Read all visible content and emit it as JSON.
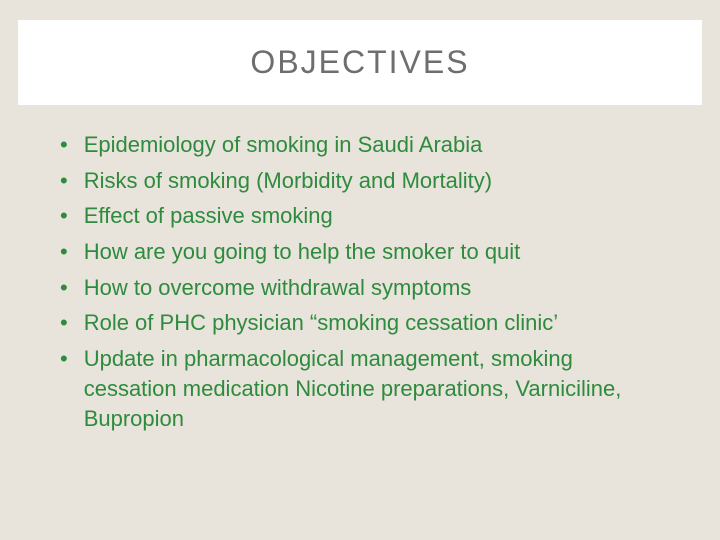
{
  "slide": {
    "title": "OBJECTIVES",
    "title_color": "#6e6e6e",
    "title_fontsize": 32,
    "title_letterspacing": 2,
    "title_bg": "#ffffff",
    "background_color": "#e8e3db",
    "bullet_color": "#2e8b3d",
    "bullet_fontsize": 22,
    "bullets": [
      "Epidemiology of smoking in Saudi Arabia",
      "Risks of smoking (Morbidity and Mortality)",
      "Effect of passive smoking",
      "How are you going to help the smoker to quit",
      "How to overcome withdrawal symptoms",
      "Role of PHC physician “smoking cessation clinic’",
      "Update in pharmacological management, smoking cessation medication Nicotine preparations, Varniciline, Bupropion"
    ]
  }
}
